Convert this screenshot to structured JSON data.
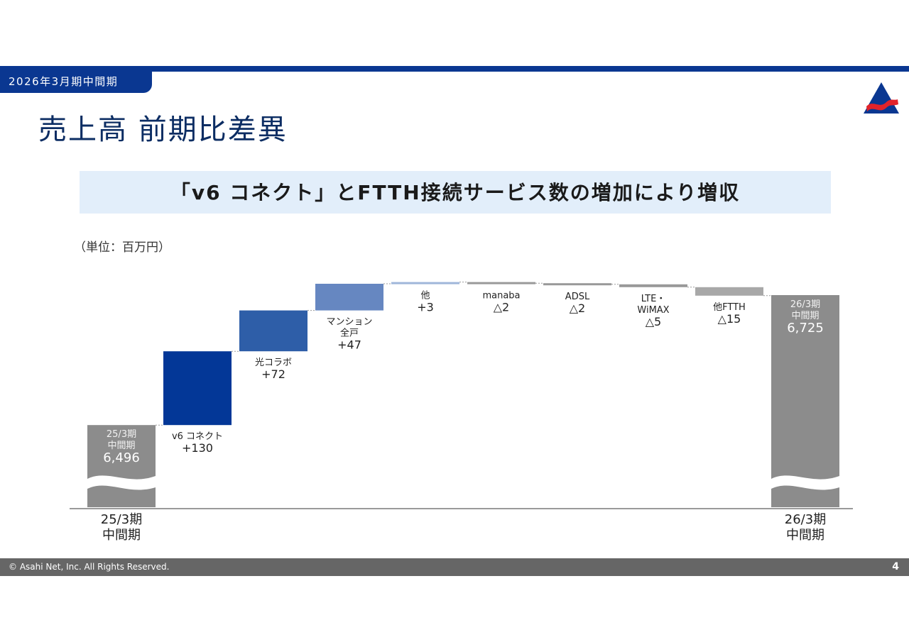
{
  "header": {
    "period_tab": "2026年3月期中間期",
    "title": "売上高 前期比差異",
    "banner": "「v6 コネクト」とFTTH接続サービス数の増加により増収"
  },
  "colors": {
    "navy": "#0a3791",
    "banner_bg": "#e2eefa",
    "total_gray": "#8c8c8c"
  },
  "chart_data": {
    "type": "bar",
    "subtype": "waterfall",
    "unit": "（単位：百万円）",
    "axis_break": true,
    "categories": [
      "25/3期 中間期",
      "v6 コネクト",
      "光コラボ",
      "マンション 全戸",
      "他",
      "manaba",
      "ADSL",
      "LTE・ WiMAX",
      "他FTTH",
      "26/3期 中間期"
    ],
    "steps": [
      {
        "kind": "total",
        "value": 6496,
        "lines": [
          "25/3期",
          "中間期"
        ],
        "value_label": "6,496",
        "color": "#8c8c8c"
      },
      {
        "kind": "delta",
        "value": 130,
        "lines": [
          "v6 コネクト"
        ],
        "value_label": "+130",
        "color": "#033797"
      },
      {
        "kind": "delta",
        "value": 72,
        "lines": [
          "光コラボ"
        ],
        "value_label": "+72",
        "color": "#2e5ea8"
      },
      {
        "kind": "delta",
        "value": 47,
        "lines": [
          "マンション",
          "全戸"
        ],
        "value_label": "+47",
        "color": "#6687c1"
      },
      {
        "kind": "delta",
        "value": 3,
        "lines": [
          "他"
        ],
        "value_label": "+3",
        "color": "#9fb6da"
      },
      {
        "kind": "delta",
        "value": -2,
        "lines": [
          "manaba"
        ],
        "value_label": "△2",
        "color": "#999999"
      },
      {
        "kind": "delta",
        "value": -2,
        "lines": [
          "ADSL"
        ],
        "value_label": "△2",
        "color": "#999999"
      },
      {
        "kind": "delta",
        "value": -5,
        "lines": [
          "LTE・",
          "WiMAX"
        ],
        "value_label": "△5",
        "color": "#999999"
      },
      {
        "kind": "delta",
        "value": -15,
        "lines": [
          "他FTTH"
        ],
        "value_label": "△15",
        "color": "#a8a8a8"
      },
      {
        "kind": "total",
        "value": 6725,
        "lines": [
          "26/3期",
          "中間期"
        ],
        "value_label": "6,725",
        "color": "#8c8c8c"
      }
    ],
    "x_labels": [
      {
        "index": 0,
        "lines": [
          "25/3期",
          "中間期"
        ]
      },
      {
        "index": 9,
        "lines": [
          "26/3期",
          "中間期"
        ]
      }
    ]
  },
  "footer": {
    "copyright": "© Asahi Net, Inc. All Rights Reserved.",
    "page": "4"
  }
}
